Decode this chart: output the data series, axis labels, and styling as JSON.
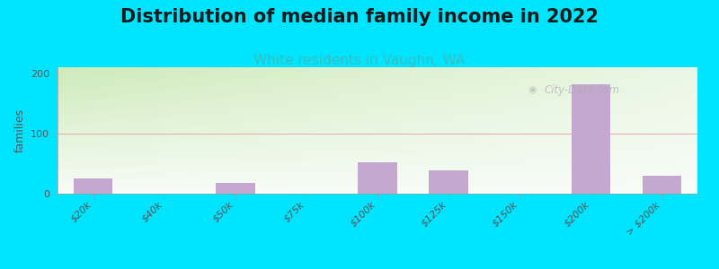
{
  "title": "Distribution of median family income in 2022",
  "subtitle": "White residents in Vaughn, WA",
  "ylabel": "families",
  "categories": [
    "$20k",
    "$40k",
    "$50k",
    "$75k",
    "$100k",
    "$125k",
    "$150k",
    "$200k",
    "> $200k"
  ],
  "values": [
    25,
    0,
    18,
    0,
    52,
    38,
    0,
    182,
    30
  ],
  "bar_color": "#c4a8d0",
  "background_color": "#00e5ff",
  "gradient_top": "#ceeaba",
  "gradient_bottom": "#f0f8ee",
  "gradient_right": "#e8f0f0",
  "grid_line_color": "#e8a0a0",
  "yticks": [
    0,
    100,
    200
  ],
  "ylim": [
    0,
    210
  ],
  "xlim_left": -0.5,
  "xlim_right": 8.5,
  "title_fontsize": 15,
  "subtitle_fontsize": 11,
  "subtitle_color": "#3bbcbc",
  "ylabel_fontsize": 9,
  "tick_label_fontsize": 8,
  "watermark_text": "City-Data.com",
  "bar_width": 0.55
}
